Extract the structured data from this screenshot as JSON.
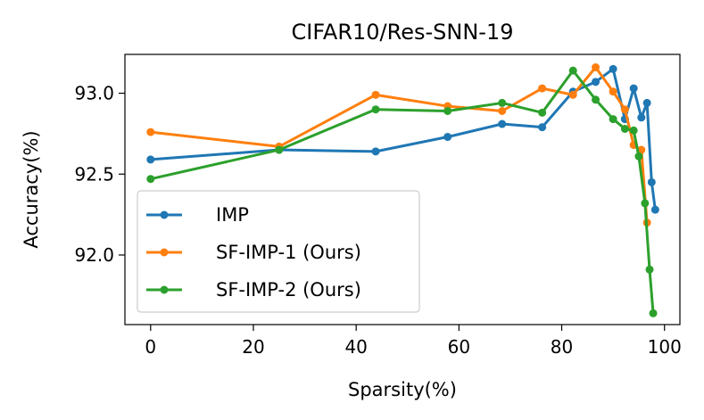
{
  "chart_data": {
    "type": "line",
    "title": "CIFAR10/Res-SNN-19",
    "xlabel": "Sparsity(%)",
    "ylabel": "Accuracy(%)",
    "xlim": [
      -5,
      103
    ],
    "ylim": [
      91.57,
      93.24
    ],
    "x_ticks": [
      0,
      20,
      40,
      60,
      80,
      100
    ],
    "y_ticks": [
      92.0,
      92.5,
      93.0
    ],
    "x_tick_labels": [
      "0",
      "20",
      "40",
      "60",
      "80",
      "100"
    ],
    "y_tick_labels": [
      "92.0",
      "92.5",
      "93.0"
    ],
    "legend_position": "lower-left",
    "grid": false,
    "series": [
      {
        "name": "IMP",
        "color": "#1f77b4",
        "x": [
          0,
          25,
          43.8,
          57.8,
          68.4,
          76.2,
          82.2,
          86.6,
          90.0,
          92.3,
          94.0,
          95.5,
          96.6,
          97.5,
          98.2
        ],
        "y": [
          92.59,
          92.65,
          92.64,
          92.73,
          92.81,
          92.79,
          93.01,
          93.07,
          93.15,
          92.84,
          93.03,
          92.85,
          92.94,
          92.45,
          92.28
        ]
      },
      {
        "name": "SF-IMP-1 (Ours)",
        "color": "#ff7f0e",
        "x": [
          0,
          25,
          43.8,
          57.8,
          68.4,
          76.2,
          82.2,
          86.6,
          90.0,
          92.3,
          94.0,
          95.5,
          96.6
        ],
        "y": [
          92.76,
          92.67,
          92.99,
          92.92,
          92.89,
          93.03,
          92.99,
          93.16,
          93.01,
          92.9,
          92.68,
          92.65,
          92.2
        ]
      },
      {
        "name": "SF-IMP-2 (Ours)",
        "color": "#2ca02c",
        "x": [
          0,
          25,
          43.8,
          57.8,
          68.4,
          76.2,
          82.2,
          86.6,
          90.0,
          92.3,
          94.0,
          95.0,
          96.2,
          97.1,
          97.8
        ],
        "y": [
          92.47,
          92.65,
          92.9,
          92.89,
          92.94,
          92.88,
          93.14,
          92.96,
          92.84,
          92.78,
          92.77,
          92.61,
          92.32,
          91.91,
          91.64
        ]
      }
    ]
  }
}
